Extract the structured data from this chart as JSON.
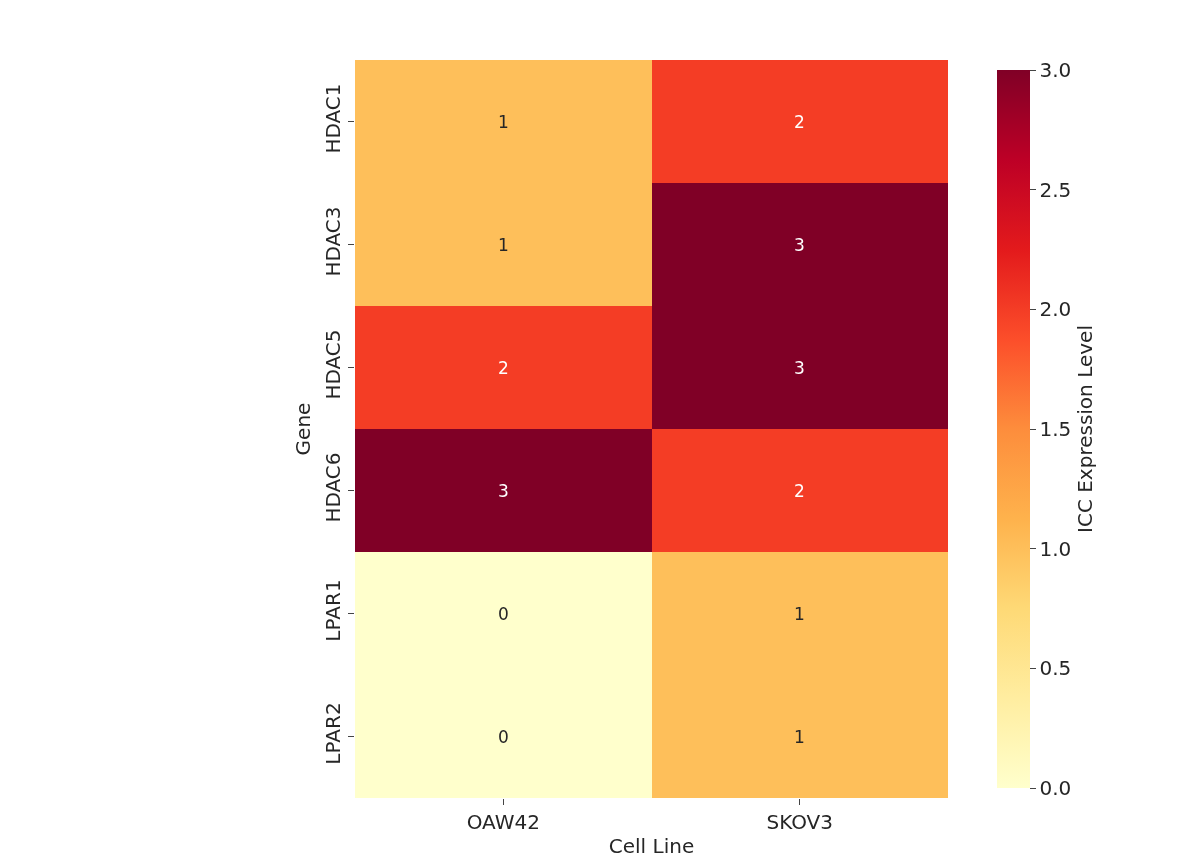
{
  "chart_data": {
    "type": "heatmap",
    "xlabel": "Cell Line",
    "ylabel": "Gene",
    "clabel": "ICC Expression Level",
    "categories": [
      "OAW42",
      "SKOV3"
    ],
    "y_categories": [
      "HDAC1",
      "HDAC3",
      "HDAC5",
      "HDAC6",
      "LPAR1",
      "LPAR2"
    ],
    "cells": [
      [
        1,
        2
      ],
      [
        1,
        3
      ],
      [
        2,
        3
      ],
      [
        3,
        2
      ],
      [
        0,
        1
      ],
      [
        0,
        1
      ]
    ],
    "clim": [
      0,
      3
    ],
    "cticks": [
      {
        "value": 0,
        "label": "0.0"
      },
      {
        "value": 0.5,
        "label": "0.5"
      },
      {
        "value": 1,
        "label": "1.0"
      },
      {
        "value": 1.5,
        "label": "1.5"
      },
      {
        "value": 2,
        "label": "2.0"
      },
      {
        "value": 2.5,
        "label": "2.5"
      },
      {
        "value": 3,
        "label": "3.0"
      }
    ],
    "data_labels": true
  }
}
